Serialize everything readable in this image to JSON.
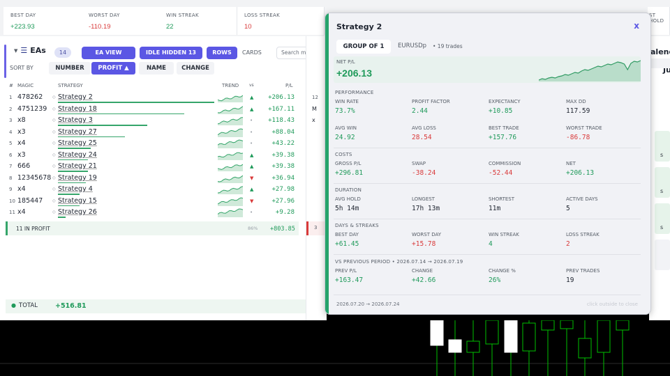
{
  "stats": [
    {
      "label": "BEST DAY",
      "value": "+223.93",
      "tone": "green"
    },
    {
      "label": "WORST DAY",
      "value": "-110.19",
      "tone": "red"
    },
    {
      "label": "WIN STREAK",
      "value": "22",
      "tone": "green"
    },
    {
      "label": "LOSS STREAK",
      "value": "10",
      "tone": "red"
    },
    {
      "label": "ST HOLD",
      "value": "",
      "tone": "dark"
    }
  ],
  "ea_panel": {
    "title": "EAs",
    "count": "14",
    "ea_view": "EA VIEW",
    "idle_hidden": "IDLE HIDDEN 13",
    "rows": "ROWS",
    "cards": "CARDS",
    "search_placeholder": "Search magic / na",
    "sort_by": "SORT BY",
    "sort_number": "NUMBER",
    "sort_profit": "PROFIT ▲",
    "sort_name": "NAME",
    "sort_change": "CHANGE"
  },
  "table_headers": {
    "idx": "#",
    "magic": "MAGIC",
    "strategy": "STRATEGY",
    "trend": "TREND",
    "vs": "vs",
    "pl": "P/L"
  },
  "ea_rows": [
    {
      "idx": "1",
      "magic": "478262",
      "name": "Strategy 2",
      "bar": 1.0,
      "dir": "▲",
      "dir_tone": "green",
      "pl": "+206.13"
    },
    {
      "idx": "2",
      "magic": "4751239",
      "name": "Strategy 18",
      "bar": 0.81,
      "dir": "▲",
      "dir_tone": "green",
      "pl": "+167.11"
    },
    {
      "idx": "3",
      "magic": "x8",
      "name": "Strategy 3",
      "bar": 0.57,
      "dir": "•",
      "dir_tone": "gray",
      "pl": "+118.43"
    },
    {
      "idx": "4",
      "magic": "x3",
      "name": "Strategy 27",
      "bar": 0.43,
      "dir": "•",
      "dir_tone": "gray",
      "pl": "+88.04"
    },
    {
      "idx": "5",
      "magic": "x4",
      "name": "Strategy 25",
      "bar": 0.21,
      "dir": "•",
      "dir_tone": "gray",
      "pl": "+43.22"
    },
    {
      "idx": "6",
      "magic": "x3",
      "name": "Strategy 24",
      "bar": 0.19,
      "dir": "▲",
      "dir_tone": "green",
      "pl": "+39.38"
    },
    {
      "idx": "7",
      "magic": "666",
      "name": "Strategy 21",
      "bar": 0.19,
      "dir": "▲",
      "dir_tone": "green",
      "pl": "+39.38"
    },
    {
      "idx": "8",
      "magic": "12345678",
      "name": "Strategy 19",
      "bar": 0.18,
      "dir": "▼",
      "dir_tone": "red",
      "pl": "+36.94"
    },
    {
      "idx": "9",
      "magic": "x4",
      "name": "Strategy 4",
      "bar": 0.14,
      "dir": "▲",
      "dir_tone": "green",
      "pl": "+27.98"
    },
    {
      "idx": "10",
      "magic": "185447",
      "name": "Strategy 15",
      "bar": 0.14,
      "dir": "▼",
      "dir_tone": "red",
      "pl": "+27.96"
    },
    {
      "idx": "11",
      "magic": "x4",
      "name": "Strategy 26",
      "bar": 0.05,
      "dir": "•",
      "dir_tone": "gray",
      "pl": "+9.28"
    }
  ],
  "summary": {
    "label": "11 IN PROFIT",
    "pct": "86%",
    "value": "+803.85"
  },
  "total": {
    "label": "TOTAL",
    "value": "+516.81"
  },
  "right_slivers": {
    "cal_label": "alend",
    "ju": "Ju",
    "mid_12": "12",
    "mid_3": "3"
  },
  "popup": {
    "title": "Strategy 2",
    "close": "x",
    "group": "GROUP OF 1",
    "symbol": "EURUSDp",
    "trades": "• 19 trades",
    "net_label": "NET P/L",
    "net_value": "+206.13",
    "spark": [
      0,
      2,
      1,
      3,
      4,
      3,
      5,
      6,
      8,
      7,
      9,
      11,
      10,
      13,
      15,
      14,
      16,
      18,
      20,
      19,
      21,
      23,
      22,
      24,
      26,
      25,
      23,
      15,
      24,
      27,
      26,
      28
    ],
    "sections": {
      "performance": "PERFORMANCE",
      "costs": "COSTS",
      "duration": "DURATION",
      "days": "DAYS & STREAKS",
      "vs_prev": "VS PREVIOUS PERIOD  •  2026.07.14 → 2026.07.19"
    },
    "performance": [
      {
        "label": "WIN RATE",
        "value": "73.7%",
        "tone": "green"
      },
      {
        "label": "PROFIT FACTOR",
        "value": "2.44",
        "tone": "green"
      },
      {
        "label": "EXPECTANCY",
        "value": "+10.85",
        "tone": "green"
      },
      {
        "label": "MAX DD",
        "value": "117.59",
        "tone": "dark"
      },
      {
        "label": "AVG WIN",
        "value": "24.92",
        "tone": "green"
      },
      {
        "label": "AVG LOSS",
        "value": "28.54",
        "tone": "red"
      },
      {
        "label": "BEST TRADE",
        "value": "+157.76",
        "tone": "green"
      },
      {
        "label": "WORST TRADE",
        "value": "-86.78",
        "tone": "red"
      }
    ],
    "costs": [
      {
        "label": "GROSS P/L",
        "value": "+296.81",
        "tone": "green"
      },
      {
        "label": "SWAP",
        "value": "-38.24",
        "tone": "red"
      },
      {
        "label": "COMMISSION",
        "value": "-52.44",
        "tone": "red"
      },
      {
        "label": "NET",
        "value": "+206.13",
        "tone": "green"
      }
    ],
    "duration": [
      {
        "label": "AVG HOLD",
        "value": "5h 14m",
        "tone": "dark"
      },
      {
        "label": "LONGEST",
        "value": "17h 13m",
        "tone": "dark"
      },
      {
        "label": "SHORTEST",
        "value": "11m",
        "tone": "dark"
      },
      {
        "label": "ACTIVE DAYS",
        "value": "5",
        "tone": "dark"
      }
    ],
    "days": [
      {
        "label": "BEST DAY",
        "value": "+61.45",
        "tone": "green"
      },
      {
        "label": "WORST DAY",
        "value": "+15.78",
        "tone": "red"
      },
      {
        "label": "WIN STREAK",
        "value": "4",
        "tone": "green"
      },
      {
        "label": "LOSS STREAK",
        "value": "2",
        "tone": "red"
      }
    ],
    "vs_prev": [
      {
        "label": "PREV P/L",
        "value": "+163.47",
        "tone": "green"
      },
      {
        "label": "CHANGE",
        "value": "+42.66",
        "tone": "green"
      },
      {
        "label": "CHANGE %",
        "value": "26%",
        "tone": "green"
      },
      {
        "label": "PREV TRADES",
        "value": "19",
        "tone": "dark"
      }
    ],
    "dates": "2026.07.20 → 2026.07.24",
    "hint": "click outside to close"
  },
  "colors": {
    "accent": "#5b57e4",
    "profit": "#1f9a5a",
    "loss": "#d93a3a",
    "candle_up": "#ffffff",
    "candle_down": "#00c000"
  }
}
